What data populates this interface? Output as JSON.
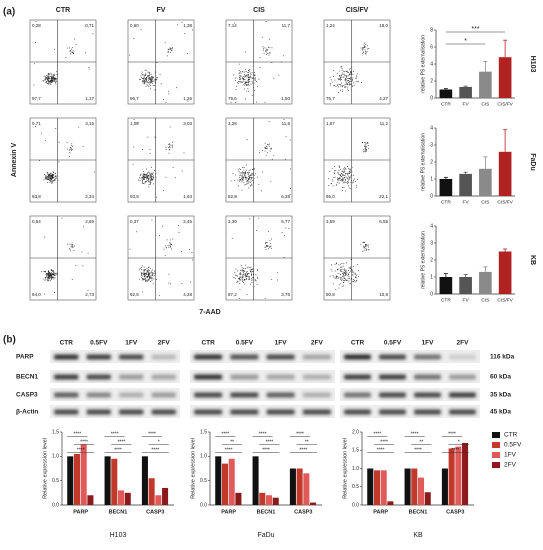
{
  "labels": {
    "panel_a": "(a)",
    "panel_b": "(b)"
  },
  "flow": {
    "columns": [
      "CTR",
      "FV",
      "CIS",
      "CIS/FV"
    ],
    "y_label": "Annexin V",
    "x_label": "7-AAD",
    "rows": [
      [
        [
          "0,28",
          "0,71",
          "97,7",
          "1,17"
        ],
        [
          "0,60",
          "1,38",
          "96,7",
          "1,26"
        ],
        [
          "7,14",
          "11,7",
          "79,6",
          "1,50"
        ],
        [
          "1,24",
          "18,0",
          "75,7",
          "4,27"
        ]
      ],
      [
        [
          "0,71",
          "3,15",
          "93,8",
          "2,34"
        ],
        [
          "1,08",
          "3,03",
          "93,8",
          "1,63"
        ],
        [
          "3,28",
          "11,8",
          "82,8",
          "6,28"
        ],
        [
          "1,67",
          "11,2",
          "65,0",
          "22,1"
        ]
      ],
      [
        [
          "0,54",
          "2,69",
          "94,0",
          "2,73"
        ],
        [
          "0,37",
          "2,45",
          "92,5",
          "4,28"
        ],
        [
          "3,30",
          "6,77",
          "87,2",
          "3,75"
        ],
        [
          "3,59",
          "6,55",
          "80,8",
          "10,8"
        ]
      ]
    ]
  },
  "blot": {
    "lanes": [
      "CTR",
      "0.5FV",
      "1FV",
      "2FV"
    ],
    "proteins": [
      "PARP",
      "BECN1",
      "CASP3",
      "β-Actin"
    ],
    "sizes": [
      "116 kDa",
      "60 kDa",
      "35 kDa",
      "45 kDa"
    ]
  },
  "chart_data": [
    {
      "type": "bar",
      "cell_line": "H103",
      "y_label": "relative PS externalisation",
      "categories": [
        "CTR",
        "FV",
        "CIS",
        "CIS/FV"
      ],
      "values": [
        1,
        1.3,
        3.1,
        4.8
      ],
      "errors": [
        0.1,
        0.1,
        1.2,
        2.0
      ],
      "colors": [
        "#111111",
        "#555555",
        "#8a8a8a",
        "#b22222"
      ],
      "ylim": [
        0,
        8
      ],
      "yticks": [
        0,
        2,
        4,
        6,
        8
      ],
      "significance": [
        "*",
        "***"
      ]
    },
    {
      "type": "bar",
      "cell_line": "FaDu",
      "y_label": "relative PS externalisation",
      "categories": [
        "CTR",
        "FV",
        "CIS",
        "CIS/FV"
      ],
      "values": [
        1,
        1.3,
        1.6,
        2.6
      ],
      "errors": [
        0.1,
        0.1,
        0.7,
        1.3
      ],
      "colors": [
        "#111111",
        "#555555",
        "#8a8a8a",
        "#b22222"
      ],
      "ylim": [
        0,
        4
      ],
      "yticks": [
        0,
        1,
        2,
        3,
        4
      ]
    },
    {
      "type": "bar",
      "cell_line": "KB",
      "y_label": "relative PS externalisation",
      "categories": [
        "CTR",
        "FV",
        "CIS",
        "CIS/FV"
      ],
      "values": [
        1,
        1.0,
        1.3,
        2.5
      ],
      "errors": [
        0.2,
        0.15,
        0.3,
        0.15
      ],
      "colors": [
        "#111111",
        "#555555",
        "#8a8a8a",
        "#b22222"
      ],
      "ylim": [
        0,
        4
      ],
      "yticks": [
        0,
        1,
        2,
        3,
        4
      ]
    },
    {
      "type": "grouped_bar",
      "x_label": "H103",
      "y_label": "Relative expression level",
      "categories": [
        "PARP",
        "BECN1",
        "CASP3"
      ],
      "series": [
        {
          "name": "CTR",
          "color": "#111111",
          "values": [
            1,
            1,
            1
          ]
        },
        {
          "name": "0.5FV",
          "color": "#c0392b",
          "values": [
            1.05,
            0.95,
            0.55
          ]
        },
        {
          "name": "1FV",
          "color": "#e05a5a",
          "values": [
            1.25,
            0.3,
            0.2
          ]
        },
        {
          "name": "2FV",
          "color": "#8b1a1a",
          "values": [
            0.2,
            0.25,
            0.35
          ]
        }
      ],
      "ylim": [
        0,
        1.5
      ],
      "yticks": [
        {
          "value": 0,
          "label": "0.0"
        },
        {
          "value": 0.5,
          "label": "0.5"
        },
        {
          "value": 1,
          "label": "1.0"
        },
        {
          "value": 1.5,
          "label": "1.5"
        }
      ],
      "significance": [
        [
          "****",
          "****",
          "****"
        ],
        [
          "****",
          "****",
          "****"
        ],
        [
          "****",
          "*",
          "****"
        ]
      ]
    },
    {
      "type": "grouped_bar",
      "x_label": "FaDu",
      "y_label": "Relative expression level",
      "categories": [
        "PARP",
        "BECN1",
        "CASP3"
      ],
      "series": [
        {
          "color": "#111111",
          "values": [
            1,
            1,
            0.75
          ]
        },
        {
          "color": "#c0392b",
          "values": [
            0.85,
            0.25,
            0.75
          ]
        },
        {
          "color": "#e05a5a",
          "values": [
            0.95,
            0.2,
            0.65
          ]
        },
        {
          "color": "#8b1a1a",
          "values": [
            0.25,
            0.15,
            0.05
          ]
        }
      ],
      "ylim": [
        0,
        1.5
      ],
      "yticks": [
        {
          "value": 0,
          "label": "0.0"
        },
        {
          "value": 0.5,
          "label": "0.5"
        },
        {
          "value": 1,
          "label": "1.0"
        },
        {
          "value": 1.5,
          "label": "1.5"
        }
      ],
      "significance": [
        [
          "****",
          "**",
          "****"
        ],
        [
          "****",
          "****",
          "****"
        ],
        [
          "****",
          "**",
          "****"
        ]
      ]
    },
    {
      "type": "grouped_bar",
      "x_label": "KB",
      "y_label": "Relative expression level",
      "categories": [
        "PARP",
        "BECN1",
        "CASP3"
      ],
      "series": [
        {
          "color": "#111111",
          "values": [
            1,
            1,
            1
          ]
        },
        {
          "color": "#c0392b",
          "values": [
            0.95,
            1.0,
            1.55
          ]
        },
        {
          "color": "#e05a5a",
          "values": [
            0.95,
            0.75,
            1.6
          ]
        },
        {
          "color": "#8b1a1a",
          "values": [
            0.1,
            0.35,
            1.7
          ]
        }
      ],
      "ylim": [
        0,
        2
      ],
      "yticks": [
        {
          "value": 0,
          "label": "0.0"
        },
        {
          "value": 0.5,
          "label": "0.5"
        },
        {
          "value": 1,
          "label": "1.0"
        },
        {
          "value": 1.5,
          "label": "1.5"
        },
        {
          "value": 2,
          "label": "2.0"
        }
      ],
      "significance": [
        [
          "****",
          "****",
          "****"
        ],
        [
          "****",
          "**",
          "****"
        ],
        [
          "****",
          "*",
          "****"
        ]
      ]
    }
  ]
}
